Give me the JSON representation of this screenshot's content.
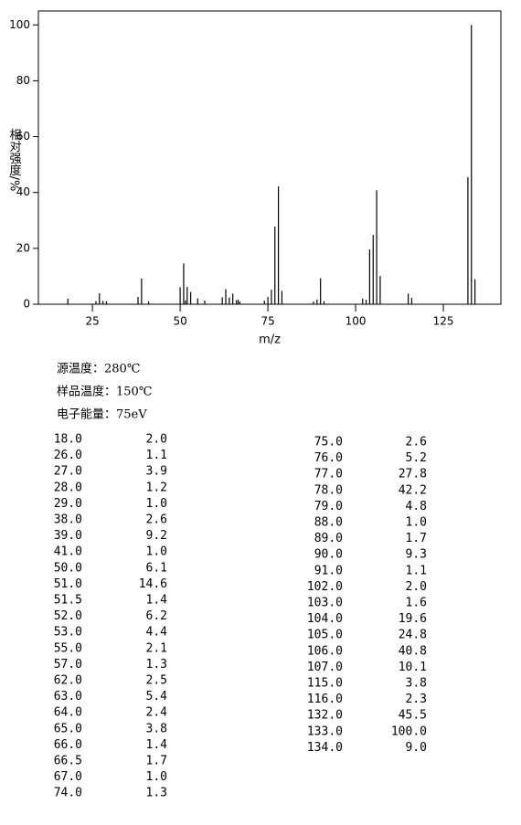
{
  "chart_data": {
    "type": "bar",
    "color": "#000000",
    "x_label": "m/z",
    "y_label": "相对强度/%",
    "xlim": [
      9.6,
      141.4
    ],
    "xticks": [
      25,
      50,
      75,
      100,
      125
    ],
    "ylim": [
      0,
      105
    ],
    "yticks": [
      0,
      20,
      40,
      60,
      80,
      100
    ],
    "x": [
      18,
      26,
      27,
      28,
      29,
      38,
      39,
      41,
      50,
      51,
      51.5,
      52,
      53,
      55,
      57,
      62,
      63,
      64,
      65,
      66,
      66.5,
      67,
      74,
      75,
      76,
      77,
      78,
      79,
      88,
      89,
      90,
      91,
      102,
      103,
      104,
      105,
      106,
      107,
      115,
      116,
      132,
      133,
      134
    ],
    "values": [
      2.0,
      1.1,
      3.9,
      1.2,
      1.0,
      2.6,
      9.2,
      1.0,
      6.1,
      14.6,
      1.4,
      6.2,
      4.4,
      2.1,
      1.3,
      2.5,
      5.4,
      2.4,
      3.8,
      1.4,
      1.7,
      1.0,
      1.3,
      2.6,
      5.2,
      27.8,
      42.2,
      4.8,
      1.0,
      1.7,
      9.3,
      1.1,
      2.0,
      1.6,
      19.6,
      24.8,
      40.8,
      10.1,
      3.8,
      2.3,
      45.5,
      100.0,
      9.0
    ]
  },
  "conditions": [
    "源温度：280℃",
    "样品温度：150℃",
    "电子能量：75eV"
  ],
  "peak_table": {
    "left": [
      [
        "18.0",
        "2.0"
      ],
      [
        "26.0",
        "1.1"
      ],
      [
        "27.0",
        "3.9"
      ],
      [
        "28.0",
        "1.2"
      ],
      [
        "29.0",
        "1.0"
      ],
      [
        "38.0",
        "2.6"
      ],
      [
        "39.0",
        "9.2"
      ],
      [
        "41.0",
        "1.0"
      ],
      [
        "50.0",
        "6.1"
      ],
      [
        "51.0",
        "14.6"
      ],
      [
        "51.5",
        "1.4"
      ],
      [
        "52.0",
        "6.2"
      ],
      [
        "53.0",
        "4.4"
      ],
      [
        "55.0",
        "2.1"
      ],
      [
        "57.0",
        "1.3"
      ],
      [
        "62.0",
        "2.5"
      ],
      [
        "63.0",
        "5.4"
      ],
      [
        "64.0",
        "2.4"
      ],
      [
        "65.0",
        "3.8"
      ],
      [
        "66.0",
        "1.4"
      ],
      [
        "66.5",
        "1.7"
      ],
      [
        "67.0",
        "1.0"
      ],
      [
        "74.0",
        "1.3"
      ]
    ],
    "right": [
      [
        "75.0",
        "2.6"
      ],
      [
        "76.0",
        "5.2"
      ],
      [
        "77.0",
        "27.8"
      ],
      [
        "78.0",
        "42.2"
      ],
      [
        "79.0",
        "4.8"
      ],
      [
        "88.0",
        "1.0"
      ],
      [
        "89.0",
        "1.7"
      ],
      [
        "90.0",
        "9.3"
      ],
      [
        "91.0",
        "1.1"
      ],
      [
        "102.0",
        "2.0"
      ],
      [
        "103.0",
        "1.6"
      ],
      [
        "104.0",
        "19.6"
      ],
      [
        "105.0",
        "24.8"
      ],
      [
        "106.0",
        "40.8"
      ],
      [
        "107.0",
        "10.1"
      ],
      [
        "115.0",
        "3.8"
      ],
      [
        "116.0",
        "2.3"
      ],
      [
        "132.0",
        "45.5"
      ],
      [
        "133.0",
        "100.0"
      ],
      [
        "134.0",
        "9.0"
      ]
    ]
  }
}
